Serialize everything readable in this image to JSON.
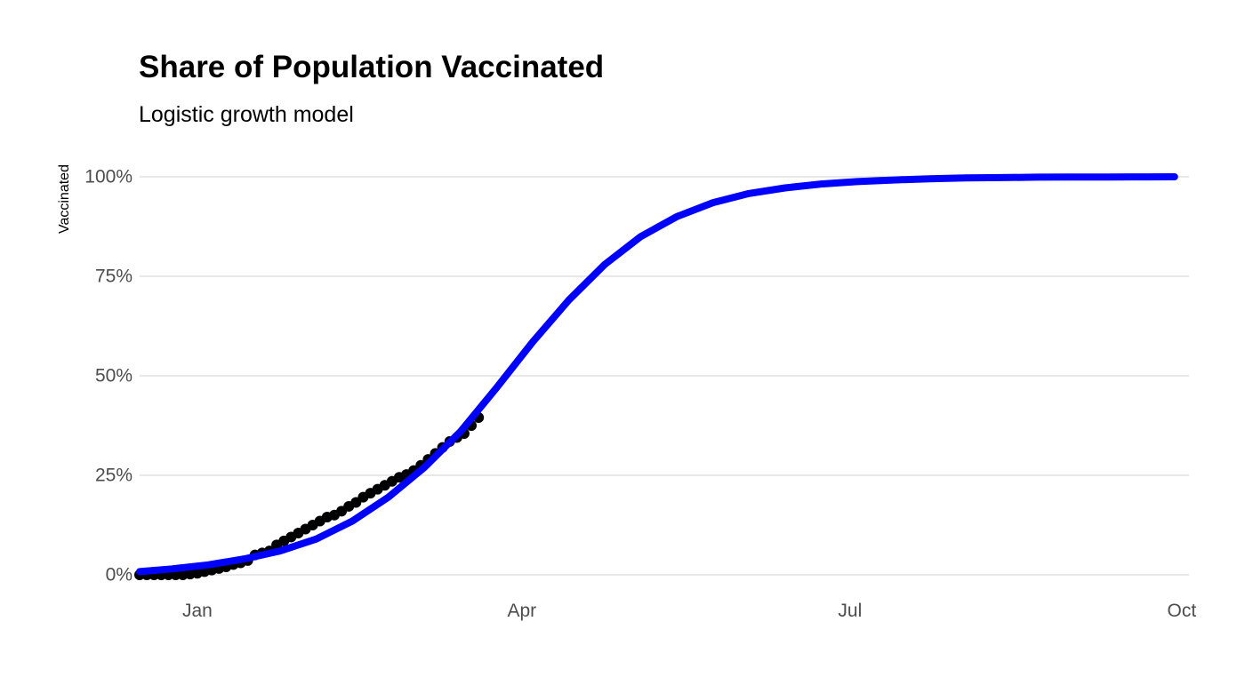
{
  "chart_data": {
    "type": "line",
    "title": "Share of Population Vaccinated",
    "subtitle": "Logistic growth model",
    "xlabel": "",
    "ylabel": "Vaccinated",
    "x_ticks": [
      {
        "date": "2021-01-01",
        "label": "Jan"
      },
      {
        "date": "2021-04-01",
        "label": "Apr"
      },
      {
        "date": "2021-07-01",
        "label": "Jul"
      },
      {
        "date": "2021-10-01",
        "label": "Oct"
      }
    ],
    "y_ticks": [
      {
        "value": 0,
        "label": "0%"
      },
      {
        "value": 0.25,
        "label": "25%"
      },
      {
        "value": 0.5,
        "label": "50%"
      },
      {
        "value": 0.75,
        "label": "75%"
      },
      {
        "value": 1,
        "label": "100%"
      }
    ],
    "xlim": [
      "2020-12-16",
      "2021-10-03"
    ],
    "ylim": [
      0,
      1
    ],
    "grid": "horizontal only",
    "series": [
      {
        "type": "scatter",
        "color": "#000000",
        "x": [
          "2020-12-16",
          "2020-12-18",
          "2020-12-20",
          "2020-12-22",
          "2020-12-24",
          "2020-12-26",
          "2020-12-28",
          "2020-12-30",
          "2021-01-01",
          "2021-01-03",
          "2021-01-05",
          "2021-01-07",
          "2021-01-09",
          "2021-01-11",
          "2021-01-13",
          "2021-01-15",
          "2021-01-17",
          "2021-01-19",
          "2021-01-21",
          "2021-01-23",
          "2021-01-25",
          "2021-01-27",
          "2021-01-29",
          "2021-01-31",
          "2021-02-02",
          "2021-02-04",
          "2021-02-06",
          "2021-02-08",
          "2021-02-10",
          "2021-02-12",
          "2021-02-14",
          "2021-02-16",
          "2021-02-18",
          "2021-02-20",
          "2021-02-22",
          "2021-02-24",
          "2021-02-26",
          "2021-02-28",
          "2021-03-02",
          "2021-03-04",
          "2021-03-06",
          "2021-03-08",
          "2021-03-10",
          "2021-03-12",
          "2021-03-14",
          "2021-03-16",
          "2021-03-18",
          "2021-03-20"
        ],
        "y": [
          0.0,
          0.0,
          0.0,
          0.0,
          0.0,
          0.0,
          0.0,
          0.002,
          0.004,
          0.008,
          0.012,
          0.016,
          0.02,
          0.026,
          0.03,
          0.036,
          0.05,
          0.055,
          0.06,
          0.075,
          0.085,
          0.095,
          0.105,
          0.115,
          0.125,
          0.135,
          0.145,
          0.15,
          0.16,
          0.172,
          0.182,
          0.195,
          0.205,
          0.215,
          0.225,
          0.235,
          0.245,
          0.252,
          0.262,
          0.275,
          0.29,
          0.305,
          0.32,
          0.335,
          0.345,
          0.355,
          0.375,
          0.395
        ]
      },
      {
        "type": "line",
        "color": "#0000ff",
        "x": [
          "2020-12-16",
          "2020-12-25",
          "2021-01-04",
          "2021-01-14",
          "2021-01-24",
          "2021-02-03",
          "2021-02-13",
          "2021-02-23",
          "2021-03-05",
          "2021-03-15",
          "2021-03-25",
          "2021-04-04",
          "2021-04-14",
          "2021-04-24",
          "2021-05-04",
          "2021-05-14",
          "2021-05-24",
          "2021-06-03",
          "2021-06-13",
          "2021-06-23",
          "2021-07-03",
          "2021-07-13",
          "2021-07-23",
          "2021-08-02",
          "2021-08-12",
          "2021-08-22",
          "2021-09-01",
          "2021-09-11",
          "2021-09-21",
          "2021-09-29"
        ],
        "y": [
          0.008,
          0.015,
          0.025,
          0.04,
          0.06,
          0.09,
          0.135,
          0.195,
          0.27,
          0.36,
          0.47,
          0.585,
          0.69,
          0.78,
          0.85,
          0.9,
          0.935,
          0.958,
          0.972,
          0.982,
          0.988,
          0.992,
          0.995,
          0.997,
          0.998,
          0.999,
          0.9993,
          0.9996,
          0.9998,
          0.9999
        ]
      }
    ]
  }
}
